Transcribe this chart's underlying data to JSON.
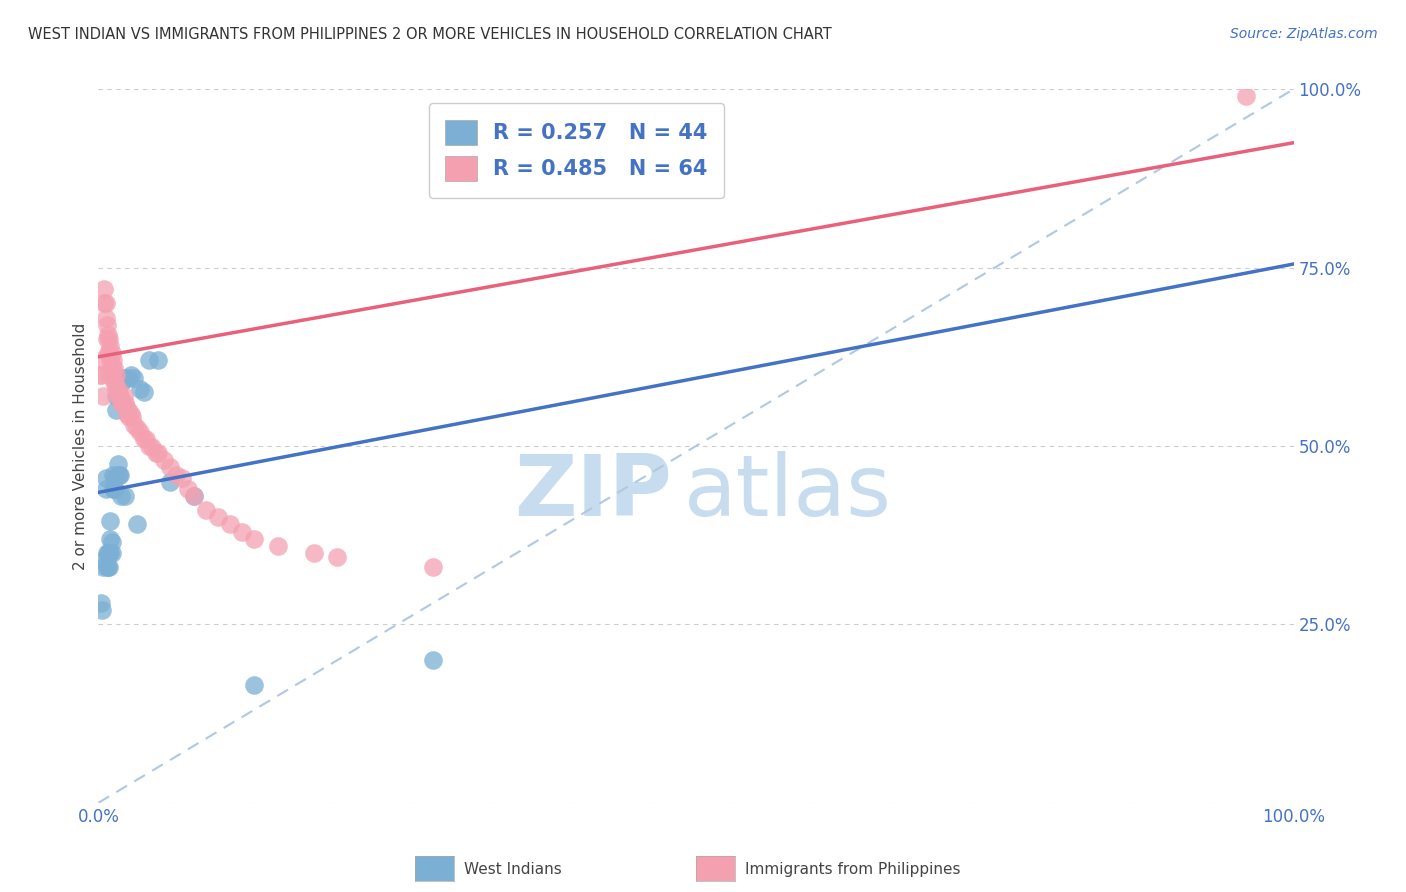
{
  "title": "WEST INDIAN VS IMMIGRANTS FROM PHILIPPINES 2 OR MORE VEHICLES IN HOUSEHOLD CORRELATION CHART",
  "source": "Source: ZipAtlas.com",
  "ylabel": "2 or more Vehicles in Household",
  "xlim": [
    0.0,
    1.0
  ],
  "ylim": [
    0.0,
    1.0
  ],
  "legend_blue_R": "0.257",
  "legend_blue_N": "44",
  "legend_pink_R": "0.485",
  "legend_pink_N": "64",
  "blue_color": "#7bafd4",
  "pink_color": "#f4a0b0",
  "blue_line_color": "#4472c4",
  "pink_line_color": "#e8607a",
  "dashed_line_color": "#b0c8e0",
  "watermark_zip": "ZIP",
  "watermark_atlas": "atlas",
  "watermark_color": "#c8dcf0",
  "blue_scatter_x": [
    0.002,
    0.003,
    0.004,
    0.005,
    0.006,
    0.006,
    0.007,
    0.007,
    0.008,
    0.008,
    0.009,
    0.009,
    0.01,
    0.01,
    0.01,
    0.011,
    0.011,
    0.012,
    0.012,
    0.013,
    0.013,
    0.014,
    0.015,
    0.015,
    0.016,
    0.016,
    0.017,
    0.018,
    0.019,
    0.02,
    0.021,
    0.022,
    0.025,
    0.027,
    0.03,
    0.032,
    0.035,
    0.038,
    0.042,
    0.05,
    0.06,
    0.08,
    0.13,
    0.28
  ],
  "blue_scatter_y": [
    0.28,
    0.27,
    0.33,
    0.34,
    0.44,
    0.455,
    0.33,
    0.35,
    0.33,
    0.35,
    0.33,
    0.35,
    0.35,
    0.37,
    0.395,
    0.35,
    0.365,
    0.44,
    0.46,
    0.44,
    0.455,
    0.44,
    0.55,
    0.57,
    0.46,
    0.475,
    0.46,
    0.46,
    0.43,
    0.59,
    0.595,
    0.43,
    0.595,
    0.6,
    0.595,
    0.39,
    0.58,
    0.575,
    0.62,
    0.62,
    0.45,
    0.43,
    0.165,
    0.2
  ],
  "pink_scatter_x": [
    0.001,
    0.002,
    0.003,
    0.004,
    0.005,
    0.005,
    0.006,
    0.006,
    0.007,
    0.007,
    0.008,
    0.008,
    0.009,
    0.009,
    0.01,
    0.01,
    0.01,
    0.011,
    0.011,
    0.012,
    0.012,
    0.013,
    0.013,
    0.014,
    0.015,
    0.015,
    0.016,
    0.017,
    0.018,
    0.019,
    0.02,
    0.021,
    0.022,
    0.023,
    0.024,
    0.025,
    0.026,
    0.027,
    0.028,
    0.03,
    0.032,
    0.035,
    0.038,
    0.04,
    0.042,
    0.045,
    0.048,
    0.05,
    0.055,
    0.06,
    0.065,
    0.07,
    0.075,
    0.08,
    0.09,
    0.1,
    0.11,
    0.12,
    0.13,
    0.15,
    0.18,
    0.2,
    0.28,
    0.96
  ],
  "pink_scatter_y": [
    0.6,
    0.6,
    0.62,
    0.57,
    0.7,
    0.72,
    0.68,
    0.7,
    0.65,
    0.67,
    0.63,
    0.655,
    0.63,
    0.65,
    0.6,
    0.62,
    0.64,
    0.61,
    0.63,
    0.6,
    0.62,
    0.59,
    0.61,
    0.59,
    0.58,
    0.6,
    0.58,
    0.57,
    0.57,
    0.56,
    0.56,
    0.57,
    0.56,
    0.555,
    0.545,
    0.55,
    0.54,
    0.545,
    0.54,
    0.53,
    0.525,
    0.52,
    0.51,
    0.51,
    0.5,
    0.498,
    0.49,
    0.49,
    0.48,
    0.47,
    0.46,
    0.455,
    0.44,
    0.43,
    0.41,
    0.4,
    0.39,
    0.38,
    0.37,
    0.36,
    0.35,
    0.345,
    0.33,
    0.99
  ]
}
